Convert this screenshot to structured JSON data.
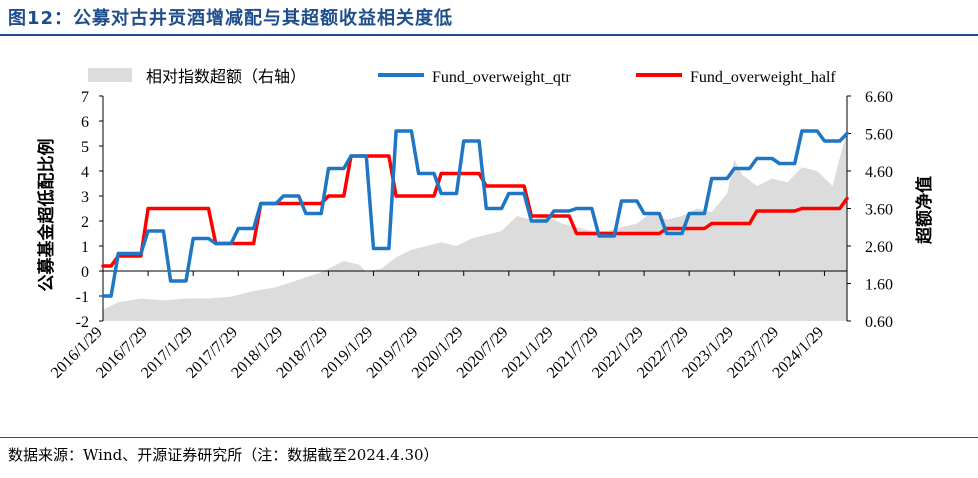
{
  "header": {
    "title": "图12：公募对古井贡酒增减配与其超额收益相关度低"
  },
  "footer": {
    "source": "数据来源：Wind、开源证券研究所（注：数据截至2024.4.30）"
  },
  "colors": {
    "title": "#1f4e8c",
    "qtr": "#1f77c4",
    "half": "#ff0000",
    "area": "#dcdcdc"
  },
  "chart_data": {
    "type": "line",
    "title": "",
    "categories": [
      "2016/1/29",
      "2016/7/29",
      "2017/1/29",
      "2017/7/29",
      "2018/1/29",
      "2018/7/29",
      "2019/1/29",
      "2019/7/29",
      "2020/1/29",
      "2020/7/29",
      "2021/1/29",
      "2021/7/29",
      "2022/1/29",
      "2022/7/29",
      "2023/1/29",
      "2023/7/29",
      "2024/1/29"
    ],
    "x_range": [
      2016.08,
      2024.33
    ],
    "y_left": {
      "label": "公募基金超低配比例",
      "range": [
        -2,
        7
      ],
      "ticks": [
        "-2",
        "-1",
        "0",
        "1",
        "2",
        "3",
        "4",
        "5",
        "6",
        "7"
      ]
    },
    "y_right": {
      "label": "超额净值",
      "range": [
        0.6,
        6.6
      ],
      "ticks": [
        "0.60",
        "1.60",
        "2.60",
        "3.60",
        "4.60",
        "5.60",
        "6.60"
      ]
    },
    "legend": [
      {
        "key": "area",
        "label": "相对指数超额（右轴）"
      },
      {
        "key": "qtr",
        "label": "Fund_overweight_qtr"
      },
      {
        "key": "half",
        "label": "Fund_overweight_half"
      }
    ],
    "series": [
      {
        "name": "相对指数超额（右轴）",
        "axis": "right",
        "kind": "area",
        "x": [
          2016.08,
          2016.25,
          2016.5,
          2016.75,
          2017.0,
          2017.25,
          2017.5,
          2017.75,
          2018.0,
          2018.25,
          2018.5,
          2018.75,
          2018.92,
          2019.0,
          2019.17,
          2019.33,
          2019.5,
          2019.67,
          2019.83,
          2020.0,
          2020.17,
          2020.33,
          2020.5,
          2020.67,
          2020.83,
          2021.0,
          2021.17,
          2021.33,
          2021.5,
          2021.67,
          2021.83,
          2022.0,
          2022.17,
          2022.33,
          2022.5,
          2022.67,
          2022.83,
          2023.0,
          2023.08,
          2023.17,
          2023.33,
          2023.5,
          2023.67,
          2023.83,
          2024.0,
          2024.17,
          2024.33
        ],
        "values": [
          0.9,
          1.1,
          1.2,
          1.15,
          1.2,
          1.2,
          1.25,
          1.4,
          1.5,
          1.7,
          1.9,
          2.2,
          2.1,
          1.9,
          2.0,
          2.3,
          2.5,
          2.6,
          2.7,
          2.6,
          2.8,
          2.9,
          3.0,
          3.4,
          3.3,
          3.4,
          3.2,
          3.1,
          3.0,
          3.0,
          3.1,
          3.2,
          3.5,
          3.3,
          3.4,
          3.6,
          3.5,
          4.0,
          4.9,
          4.5,
          4.2,
          4.4,
          4.3,
          4.7,
          4.6,
          4.2,
          5.7
        ]
      },
      {
        "name": "Fund_overweight_qtr",
        "axis": "left",
        "kind": "line",
        "x": [
          2016.08,
          2016.17,
          2016.25,
          2016.5,
          2016.58,
          2016.75,
          2016.83,
          2017.0,
          2017.08,
          2017.25,
          2017.33,
          2017.5,
          2017.58,
          2017.75,
          2017.83,
          2018.0,
          2018.08,
          2018.25,
          2018.33,
          2018.5,
          2018.58,
          2018.75,
          2018.83,
          2019.0,
          2019.08,
          2019.25,
          2019.33,
          2019.5,
          2019.58,
          2019.75,
          2019.83,
          2020.0,
          2020.08,
          2020.25,
          2020.33,
          2020.5,
          2020.58,
          2020.75,
          2020.83,
          2021.0,
          2021.08,
          2021.25,
          2021.33,
          2021.5,
          2021.58,
          2021.75,
          2021.83,
          2022.0,
          2022.08,
          2022.25,
          2022.33,
          2022.5,
          2022.58,
          2022.75,
          2022.83,
          2023.0,
          2023.08,
          2023.25,
          2023.33,
          2023.5,
          2023.58,
          2023.75,
          2023.83,
          2024.0,
          2024.08,
          2024.25,
          2024.33
        ],
        "values": [
          -1.0,
          -1.0,
          0.7,
          0.7,
          1.6,
          1.6,
          -0.4,
          -0.4,
          1.3,
          1.3,
          1.1,
          1.1,
          1.7,
          1.7,
          2.7,
          2.7,
          3.0,
          3.0,
          2.3,
          2.3,
          4.1,
          4.1,
          4.6,
          4.6,
          0.9,
          0.9,
          5.6,
          5.6,
          3.9,
          3.9,
          3.1,
          3.1,
          5.2,
          5.2,
          2.5,
          2.5,
          3.1,
          3.1,
          2.0,
          2.0,
          2.4,
          2.4,
          2.5,
          2.5,
          1.4,
          1.4,
          2.8,
          2.8,
          2.3,
          2.3,
          1.5,
          1.5,
          2.3,
          2.3,
          3.7,
          3.7,
          4.1,
          4.1,
          4.5,
          4.5,
          4.3,
          4.3,
          5.6,
          5.6,
          5.2,
          5.2,
          5.5
        ]
      },
      {
        "name": "Fund_overweight_half",
        "axis": "left",
        "kind": "line",
        "x": [
          2016.08,
          2016.17,
          2016.25,
          2016.5,
          2016.58,
          2017.0,
          2017.08,
          2017.25,
          2017.33,
          2017.5,
          2017.58,
          2017.75,
          2017.83,
          2018.0,
          2018.08,
          2018.25,
          2018.33,
          2018.5,
          2018.58,
          2018.75,
          2018.83,
          2019.0,
          2019.08,
          2019.25,
          2019.33,
          2019.5,
          2019.58,
          2019.75,
          2019.83,
          2020.0,
          2020.08,
          2020.25,
          2020.33,
          2020.5,
          2020.58,
          2020.75,
          2020.83,
          2021.0,
          2021.08,
          2021.25,
          2021.33,
          2021.5,
          2021.58,
          2021.75,
          2021.83,
          2022.0,
          2022.08,
          2022.25,
          2022.33,
          2022.5,
          2022.58,
          2022.75,
          2022.83,
          2023.0,
          2023.08,
          2023.25,
          2023.33,
          2023.5,
          2023.58,
          2023.75,
          2023.83,
          2024.0,
          2024.08,
          2024.25,
          2024.33
        ],
        "values": [
          0.2,
          0.2,
          0.6,
          0.6,
          2.5,
          2.5,
          2.5,
          2.5,
          1.1,
          1.1,
          1.1,
          1.1,
          2.7,
          2.7,
          2.7,
          2.7,
          2.7,
          2.7,
          3.0,
          3.0,
          4.6,
          4.6,
          4.6,
          4.6,
          3.0,
          3.0,
          3.0,
          3.0,
          3.9,
          3.9,
          3.9,
          3.9,
          3.4,
          3.4,
          3.4,
          3.4,
          2.2,
          2.2,
          2.2,
          2.2,
          1.5,
          1.5,
          1.5,
          1.5,
          1.5,
          1.5,
          1.5,
          1.5,
          1.7,
          1.7,
          1.7,
          1.7,
          1.9,
          1.9,
          1.9,
          1.9,
          2.4,
          2.4,
          2.4,
          2.4,
          2.5,
          2.5,
          2.5,
          2.5,
          2.9
        ]
      }
    ]
  }
}
